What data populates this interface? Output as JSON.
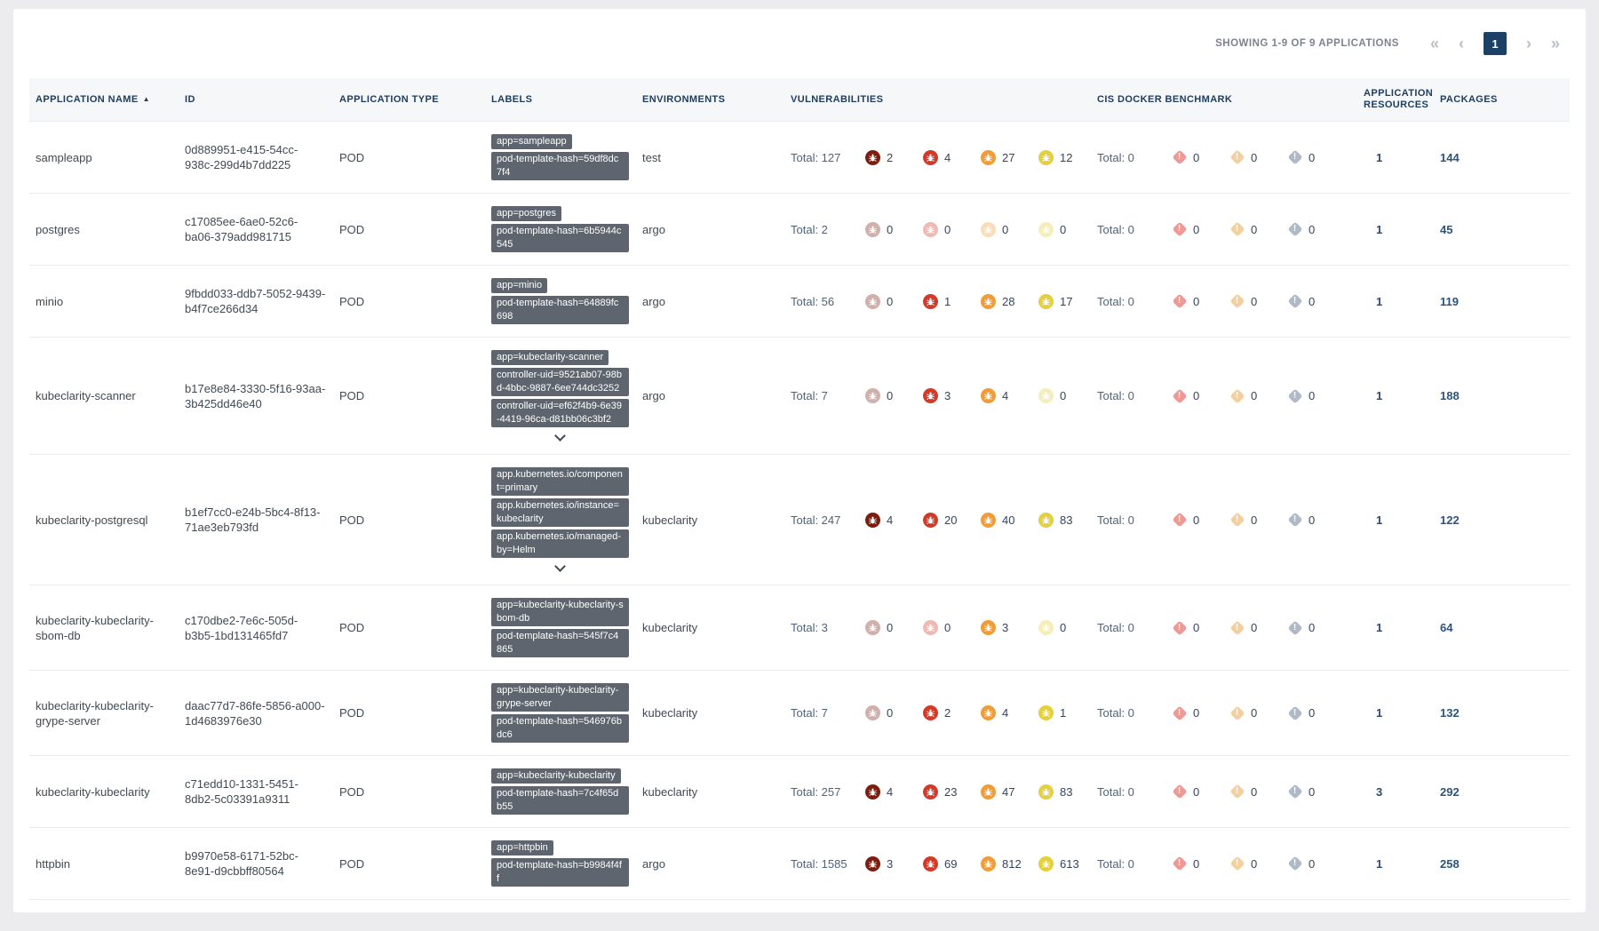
{
  "header": {
    "showing_text": "SHOWING 1-9 OF 9 APPLICATIONS",
    "pagination": {
      "first": "«",
      "prev": "‹",
      "page": "1",
      "next": "›",
      "last": "»"
    }
  },
  "icons": {
    "sort_ascending": "▲",
    "exclamation": "!"
  },
  "colors": {
    "critical": "#7d1d10",
    "high": "#d43a2a",
    "medium": "#f09c38",
    "low": "#e4cf3e",
    "cis_fatal": "#e0362c",
    "cis_warn": "#e8a33d",
    "cis_info": "#64788f",
    "chip_bg": "#5e656e",
    "page_box": "#1b4166"
  },
  "table": {
    "total_prefix": "Total:",
    "columns": [
      {
        "label": "APPLICATION NAME",
        "sorted": "asc"
      },
      {
        "label": "ID"
      },
      {
        "label": "APPLICATION TYPE"
      },
      {
        "label": "LABELS"
      },
      {
        "label": "ENVIRONMENTS"
      },
      {
        "label": "VULNERABILITIES"
      },
      {
        "label": "CIS DOCKER BENCHMARK"
      },
      {
        "label": "APPLICATION RESOURCES"
      },
      {
        "label": "PACKAGES"
      }
    ],
    "vuln_severities": [
      "critical",
      "high",
      "medium",
      "low"
    ],
    "cis_levels": [
      "cis_fatal",
      "cis_warn",
      "cis_info"
    ],
    "rows": [
      {
        "name": "sampleapp",
        "id": "0d889951-e415-54cc-938c-299d4b7dd225",
        "type": "POD",
        "labels": [
          "app=sampleapp",
          "pod-template-hash=59df8dc7f4"
        ],
        "expandable": false,
        "environments": "test",
        "vulnerabilities": {
          "total": 127,
          "critical": 2,
          "high": 4,
          "medium": 27,
          "low": 12
        },
        "cis": {
          "total": 0,
          "cis_fatal": 0,
          "cis_warn": 0,
          "cis_info": 0
        },
        "application_resources": 1,
        "packages": 144
      },
      {
        "name": "postgres",
        "id": "c17085ee-6ae0-52c6-ba06-379add981715",
        "type": "POD",
        "labels": [
          "app=postgres",
          "pod-template-hash=6b5944c545"
        ],
        "expandable": false,
        "environments": "argo",
        "vulnerabilities": {
          "total": 2,
          "critical": 0,
          "high": 0,
          "medium": 0,
          "low": 0
        },
        "cis": {
          "total": 0,
          "cis_fatal": 0,
          "cis_warn": 0,
          "cis_info": 0
        },
        "application_resources": 1,
        "packages": 45
      },
      {
        "name": "minio",
        "id": "9fbdd033-ddb7-5052-9439-b4f7ce266d34",
        "type": "POD",
        "labels": [
          "app=minio",
          "pod-template-hash=64889fc698"
        ],
        "expandable": false,
        "environments": "argo",
        "vulnerabilities": {
          "total": 56,
          "critical": 0,
          "high": 1,
          "medium": 28,
          "low": 17
        },
        "cis": {
          "total": 0,
          "cis_fatal": 0,
          "cis_warn": 0,
          "cis_info": 0
        },
        "application_resources": 1,
        "packages": 119
      },
      {
        "name": "kubeclarity-scanner",
        "id": "b17e8e84-3330-5f16-93aa-3b425dd46e40",
        "type": "POD",
        "labels": [
          "app=kubeclarity-scanner",
          "controller-uid=9521ab07-98bd-4bbc-9887-6ee744dc3252",
          "controller-uid=ef62f4b9-6e39-4419-96ca-d81bb06c3bf2"
        ],
        "expandable": true,
        "environments": "argo",
        "vulnerabilities": {
          "total": 7,
          "critical": 0,
          "high": 3,
          "medium": 4,
          "low": 0
        },
        "cis": {
          "total": 0,
          "cis_fatal": 0,
          "cis_warn": 0,
          "cis_info": 0
        },
        "application_resources": 1,
        "packages": 188
      },
      {
        "name": "kubeclarity-postgresql",
        "id": "b1ef7cc0-e24b-5bc4-8f13-71ae3eb793fd",
        "type": "POD",
        "labels": [
          "app.kubernetes.io/component=primary",
          "app.kubernetes.io/instance=kubeclarity",
          "app.kubernetes.io/managed-by=Helm"
        ],
        "expandable": true,
        "environments": "kubeclarity",
        "vulnerabilities": {
          "total": 247,
          "critical": 4,
          "high": 20,
          "medium": 40,
          "low": 83
        },
        "cis": {
          "total": 0,
          "cis_fatal": 0,
          "cis_warn": 0,
          "cis_info": 0
        },
        "application_resources": 1,
        "packages": 122
      },
      {
        "name": "kubeclarity-kubeclarity-sbom-db",
        "id": "c170dbe2-7e6c-505d-b3b5-1bd131465fd7",
        "type": "POD",
        "labels": [
          "app=kubeclarity-kubeclarity-sbom-db",
          "pod-template-hash=545f7c4865"
        ],
        "expandable": false,
        "environments": "kubeclarity",
        "vulnerabilities": {
          "total": 3,
          "critical": 0,
          "high": 0,
          "medium": 3,
          "low": 0
        },
        "cis": {
          "total": 0,
          "cis_fatal": 0,
          "cis_warn": 0,
          "cis_info": 0
        },
        "application_resources": 1,
        "packages": 64
      },
      {
        "name": "kubeclarity-kubeclarity-grype-server",
        "id": "daac77d7-86fe-5856-a000-1d4683976e30",
        "type": "POD",
        "labels": [
          "app=kubeclarity-kubeclarity-grype-server",
          "pod-template-hash=546976bdc6"
        ],
        "expandable": false,
        "environments": "kubeclarity",
        "vulnerabilities": {
          "total": 7,
          "critical": 0,
          "high": 2,
          "medium": 4,
          "low": 1
        },
        "cis": {
          "total": 0,
          "cis_fatal": 0,
          "cis_warn": 0,
          "cis_info": 0
        },
        "application_resources": 1,
        "packages": 132
      },
      {
        "name": "kubeclarity-kubeclarity",
        "id": "c71edd10-1331-5451-8db2-5c03391a9311",
        "type": "POD",
        "labels": [
          "app=kubeclarity-kubeclarity",
          "pod-template-hash=7c4f65db55"
        ],
        "expandable": false,
        "environments": "kubeclarity",
        "vulnerabilities": {
          "total": 257,
          "critical": 4,
          "high": 23,
          "medium": 47,
          "low": 83
        },
        "cis": {
          "total": 0,
          "cis_fatal": 0,
          "cis_warn": 0,
          "cis_info": 0
        },
        "application_resources": 3,
        "packages": 292
      },
      {
        "name": "httpbin",
        "id": "b9970e58-6171-52bc-8e91-d9cbbff80564",
        "type": "POD",
        "labels": [
          "app=httpbin",
          "pod-template-hash=b9984f4ff"
        ],
        "expandable": false,
        "environments": "argo",
        "vulnerabilities": {
          "total": 1585,
          "critical": 3,
          "high": 69,
          "medium": 812,
          "low": 613
        },
        "cis": {
          "total": 0,
          "cis_fatal": 0,
          "cis_warn": 0,
          "cis_info": 0
        },
        "application_resources": 1,
        "packages": 258
      }
    ]
  }
}
